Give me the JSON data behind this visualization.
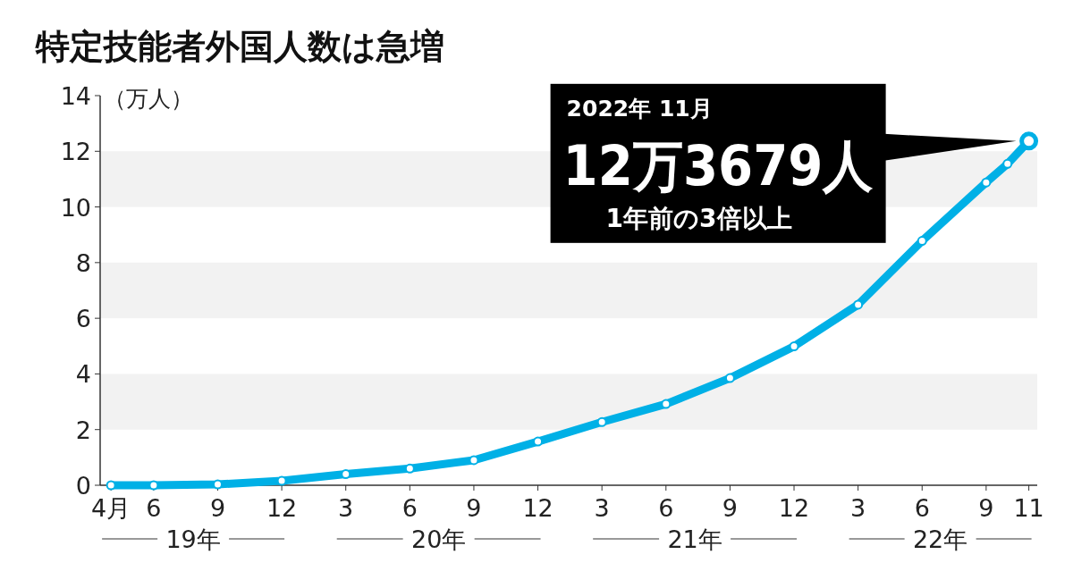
{
  "chart_data": {
    "type": "line",
    "title": "特定技能者外国人数は急増",
    "ylabel": "（万人）",
    "x": [
      "2019-04",
      "2019-06",
      "2019-09",
      "2019-12",
      "2020-03",
      "2020-06",
      "2020-09",
      "2020-12",
      "2021-03",
      "2021-06",
      "2021-09",
      "2021-12",
      "2022-03",
      "2022-06",
      "2022-09",
      "2022-10",
      "2022-11"
    ],
    "series": [
      {
        "color": "#00b0e6",
        "values": [
          0,
          0,
          0.03,
          0.16,
          0.4,
          0.6,
          0.9,
          1.57,
          2.27,
          2.92,
          3.85,
          4.99,
          6.49,
          8.78,
          10.88,
          11.55,
          12.3679
        ]
      }
    ],
    "marker": "circle",
    "line_style": "solid",
    "grid": false,
    "xlim": [
      "2019-03-16",
      "2022-11-13"
    ],
    "xticks": [
      {
        "value": "2019-04",
        "label": "4月"
      },
      {
        "value": "2019-06",
        "label": "6"
      },
      {
        "value": "2019-09",
        "label": "9"
      },
      {
        "value": "2019-12",
        "label": "12"
      },
      {
        "value": "2020-03",
        "label": "3"
      },
      {
        "value": "2020-06",
        "label": "6"
      },
      {
        "value": "2020-09",
        "label": "9"
      },
      {
        "value": "2020-12",
        "label": "12"
      },
      {
        "value": "2021-03",
        "label": "3"
      },
      {
        "value": "2021-06",
        "label": "6"
      },
      {
        "value": "2021-09",
        "label": "9"
      },
      {
        "value": "2021-12",
        "label": "12"
      },
      {
        "value": "2022-03",
        "label": "3"
      },
      {
        "value": "2022-06",
        "label": "6"
      },
      {
        "value": "2022-09",
        "label": "9"
      },
      {
        "value": "2022-11",
        "label": "11"
      }
    ],
    "ylim": [
      0,
      14
    ],
    "yticks": [
      0,
      2,
      4,
      6,
      8,
      10,
      12,
      14
    ],
    "bands": [
      {
        "axis": "y",
        "from": 2,
        "to": 4,
        "color": "#f2f2f2"
      },
      {
        "axis": "y",
        "from": 6,
        "to": 8,
        "color": "#f2f2f2"
      },
      {
        "axis": "y",
        "from": 10,
        "to": 12,
        "color": "#f2f2f2"
      }
    ],
    "annotations": [
      "2022年 11月",
      "12万3679人",
      "1年前の3倍以上",
      "19年",
      "20年",
      "21年",
      "22年"
    ]
  }
}
